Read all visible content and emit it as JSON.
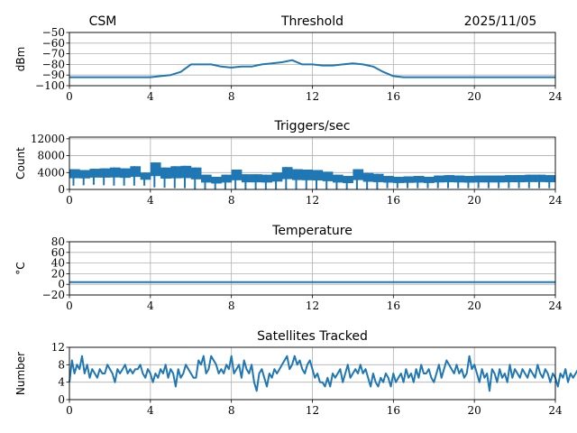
{
  "header": {
    "left": "CSM",
    "right": "2025/11/05"
  },
  "colors": {
    "line": "#1f77b4",
    "grid": "#b0b0b0"
  },
  "chart_data": [
    {
      "type": "line",
      "title": "Threshold",
      "ylabel": "dBm",
      "xlabel": "",
      "xlim": [
        0,
        24
      ],
      "xticks": [
        "0",
        "4",
        "8",
        "12",
        "16",
        "20",
        "24"
      ],
      "ylim": [
        -100,
        -50
      ],
      "yticks": [
        "−100",
        "−90",
        "−80",
        "−70",
        "−60",
        "−50"
      ],
      "ytick_values": [
        -100,
        -90,
        -80,
        -70,
        -60,
        -50
      ],
      "grid": true,
      "x_step_hours": 0.5,
      "values": [
        -92,
        -92,
        -92,
        -92,
        -92,
        -92,
        -92,
        -92,
        -92,
        -91,
        -90,
        -87,
        -80,
        -80,
        -80,
        -82,
        -83,
        -82,
        -82,
        -80,
        -79,
        -78,
        -76,
        -80,
        -80,
        -81,
        -81,
        -80,
        -79,
        -80,
        -82,
        -87,
        -91,
        -92,
        -92,
        -92,
        -92,
        -92,
        -92,
        -92,
        -92,
        -92,
        -92,
        -92,
        -92,
        -92,
        -92,
        -92,
        -92
      ]
    },
    {
      "type": "line",
      "title": "Triggers/sec",
      "ylabel": "Count",
      "xlabel": "",
      "xlim": [
        0,
        24
      ],
      "xticks": [
        "0",
        "4",
        "8",
        "12",
        "16",
        "20",
        "24"
      ],
      "ylim": [
        0,
        12400
      ],
      "yticks": [
        "0",
        "4000",
        "8000",
        "12000"
      ],
      "ytick_values": [
        0,
        4000,
        8000,
        12000
      ],
      "grid": true,
      "x_step_hours": 0.5,
      "low": [
        900,
        1000,
        1100,
        1000,
        900,
        900,
        900,
        900,
        500,
        400,
        300,
        300,
        100,
        100,
        100,
        100,
        100,
        100,
        100,
        100,
        100,
        100,
        100,
        100,
        100,
        100,
        100,
        100,
        100,
        100,
        100,
        300,
        300,
        300,
        300,
        300,
        300,
        300,
        300,
        300,
        300,
        300,
        300,
        300,
        300,
        300,
        300,
        300
      ],
      "high": [
        4800,
        4600,
        4900,
        5000,
        5200,
        5000,
        5500,
        4000,
        6400,
        5200,
        5500,
        5600,
        5200,
        3500,
        3000,
        3500,
        4700,
        3600,
        3600,
        3500,
        4000,
        5300,
        4800,
        4700,
        4600,
        4200,
        3500,
        3200,
        4800,
        3900,
        3700,
        3200,
        3000,
        3100,
        3200,
        3000,
        3300,
        3400,
        3300,
        3200,
        3300,
        3300,
        3300,
        3400,
        3400,
        3500,
        3500,
        3400
      ]
    },
    {
      "type": "line",
      "title": "Temperature",
      "ylabel": "°C",
      "xlabel": "",
      "xlim": [
        0,
        24
      ],
      "xticks": [
        "0",
        "4",
        "8",
        "12",
        "16",
        "20",
        "24"
      ],
      "ylim": [
        -20,
        80
      ],
      "yticks": [
        "−20",
        "0",
        "20",
        "40",
        "60",
        "80"
      ],
      "ytick_values": [
        -20,
        0,
        20,
        40,
        60,
        80
      ],
      "grid": true,
      "x_step_hours": 24,
      "values": [
        4,
        4
      ]
    },
    {
      "type": "line",
      "title": "Satellites Tracked",
      "ylabel": "Number",
      "xlabel": "",
      "xlim": [
        0,
        24
      ],
      "xticks": [
        "0",
        "4",
        "8",
        "12",
        "16",
        "20",
        "24"
      ],
      "ylim": [
        0,
        12
      ],
      "yticks": [
        "0",
        "4",
        "8",
        "12"
      ],
      "ytick_values": [
        0,
        4,
        8,
        12
      ],
      "grid": true,
      "x_step_hours": 0.125,
      "values": [
        4,
        9,
        6,
        8,
        7,
        10,
        6,
        8,
        5,
        7,
        6,
        5,
        7,
        6,
        6,
        8,
        7,
        6,
        4,
        7,
        6,
        7,
        8,
        6,
        7,
        6,
        7,
        7,
        8,
        6,
        5,
        7,
        6,
        4,
        6,
        5,
        7,
        6,
        8,
        5,
        7,
        6,
        3,
        7,
        5,
        6,
        8,
        7,
        6,
        5,
        5,
        9,
        8,
        10,
        6,
        7,
        10,
        9,
        8,
        6,
        7,
        6,
        8,
        7,
        10,
        6,
        7,
        8,
        5,
        9,
        7,
        6,
        8,
        4,
        2,
        6,
        7,
        5,
        3,
        6,
        5,
        7,
        6,
        7,
        8,
        9,
        10,
        7,
        8,
        10,
        8,
        9,
        7,
        6,
        8,
        9,
        7,
        5,
        6,
        4,
        4,
        3,
        5,
        3,
        6,
        5,
        6,
        7,
        4,
        6,
        8,
        5,
        6,
        7,
        6,
        8,
        6,
        7,
        5,
        3,
        6,
        4,
        3,
        5,
        4,
        6,
        5,
        3,
        6,
        4,
        5,
        6,
        4,
        7,
        5,
        6,
        4,
        7,
        5,
        8,
        6,
        6,
        7,
        5,
        4,
        6,
        8,
        5,
        7,
        9,
        8,
        7,
        6,
        8,
        6,
        7,
        5,
        6,
        10,
        7,
        8,
        6,
        4,
        7,
        5,
        6,
        2,
        7,
        6,
        4,
        7,
        5,
        6,
        4,
        8,
        5,
        7,
        6,
        5,
        7,
        6,
        5,
        7,
        6,
        5,
        8,
        6,
        5,
        7,
        6,
        4,
        6,
        5,
        3,
        6,
        5,
        7,
        4,
        6,
        5,
        6,
        7,
        4,
        5,
        6,
        7,
        8,
        5,
        6,
        4,
        3,
        2,
        4,
        6,
        5,
        4,
        7,
        5,
        6,
        4,
        6,
        5,
        7,
        6,
        7,
        8,
        9,
        6,
        7,
        5,
        4
      ]
    }
  ]
}
